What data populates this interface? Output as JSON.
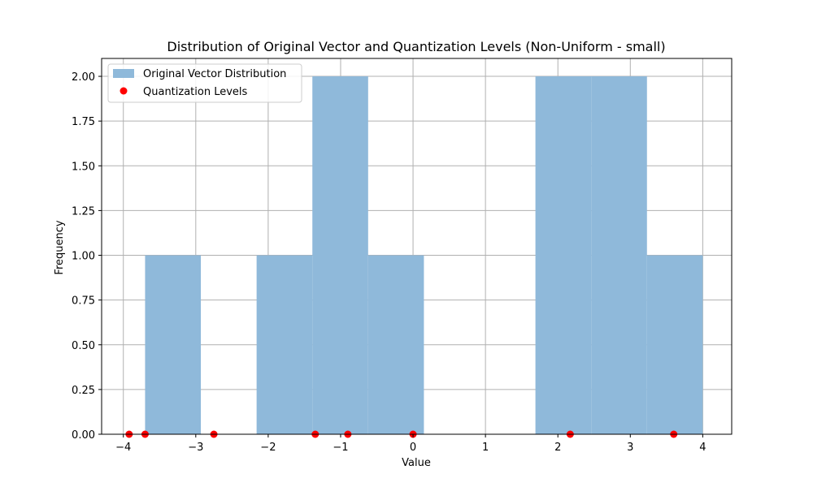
{
  "chart_data": {
    "type": "bar",
    "title": "Distribution of Original Vector and Quantization Levels (Non-Uniform - small)",
    "xlabel": "Value",
    "ylabel": "Frequency",
    "xlim": [
      -4.3,
      4.4
    ],
    "ylim": [
      0,
      2.1
    ],
    "xticks": [
      -4,
      -3,
      -2,
      -1,
      0,
      1,
      2,
      3,
      4
    ],
    "yticks": [
      0.0,
      0.25,
      0.5,
      0.75,
      1.0,
      1.25,
      1.5,
      1.75,
      2.0
    ],
    "xtick_labels": [
      "−4",
      "−3",
      "−2",
      "−1",
      "0",
      "1",
      "2",
      "3",
      "4"
    ],
    "ytick_labels": [
      "0.00",
      "0.25",
      "0.50",
      "0.75",
      "1.00",
      "1.25",
      "1.50",
      "1.75",
      "2.00"
    ],
    "grid": true,
    "legend_position": "top-left",
    "histogram": {
      "name": "Original Vector Distribution",
      "color": "#8fb9da",
      "bins": [
        {
          "x0": -3.7,
          "x1": -2.93,
          "count": 1
        },
        {
          "x0": -2.93,
          "x1": -2.16,
          "count": 0
        },
        {
          "x0": -2.16,
          "x1": -1.39,
          "count": 1
        },
        {
          "x0": -1.39,
          "x1": -0.62,
          "count": 2
        },
        {
          "x0": -0.62,
          "x1": 0.15,
          "count": 1
        },
        {
          "x0": 0.15,
          "x1": 0.92,
          "count": 0
        },
        {
          "x0": 0.92,
          "x1": 1.69,
          "count": 0
        },
        {
          "x0": 1.69,
          "x1": 2.46,
          "count": 2
        },
        {
          "x0": 2.46,
          "x1": 3.23,
          "count": 2
        },
        {
          "x0": 3.23,
          "x1": 4.0,
          "count": 1
        }
      ]
    },
    "scatter": {
      "name": "Quantization Levels",
      "color": "#ff0000",
      "x": [
        -3.92,
        -3.7,
        -2.75,
        -1.35,
        -0.9,
        0.0,
        2.17,
        3.6
      ],
      "y": [
        0,
        0,
        0,
        0,
        0,
        0,
        0,
        0
      ]
    }
  }
}
